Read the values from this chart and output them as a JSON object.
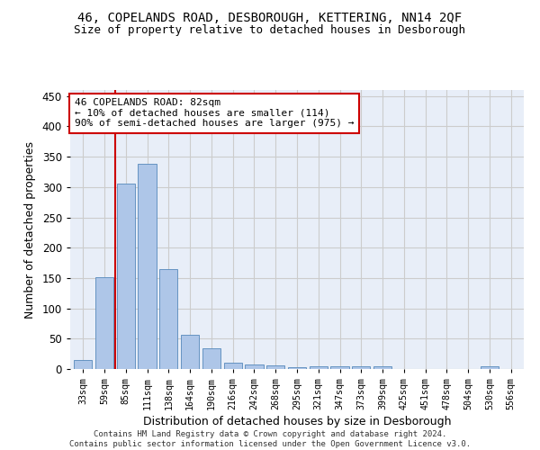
{
  "title": "46, COPELANDS ROAD, DESBOROUGH, KETTERING, NN14 2QF",
  "subtitle": "Size of property relative to detached houses in Desborough",
  "xlabel": "Distribution of detached houses by size in Desborough",
  "ylabel": "Number of detached properties",
  "categories": [
    "33sqm",
    "59sqm",
    "85sqm",
    "111sqm",
    "138sqm",
    "164sqm",
    "190sqm",
    "216sqm",
    "242sqm",
    "268sqm",
    "295sqm",
    "321sqm",
    "347sqm",
    "373sqm",
    "399sqm",
    "425sqm",
    "451sqm",
    "478sqm",
    "504sqm",
    "530sqm",
    "556sqm"
  ],
  "values": [
    15,
    152,
    305,
    338,
    165,
    57,
    34,
    10,
    8,
    6,
    3,
    4,
    5,
    5,
    5,
    0,
    0,
    0,
    0,
    4,
    0
  ],
  "bar_color": "#aec6e8",
  "bar_edge_color": "#5588bb",
  "vline_x_index": 1.5,
  "vline_color": "#cc0000",
  "annotation_text": "46 COPELANDS ROAD: 82sqm\n← 10% of detached houses are smaller (114)\n90% of semi-detached houses are larger (975) →",
  "annotation_box_color": "#ffffff",
  "annotation_box_edge": "#cc0000",
  "ylim": [
    0,
    460
  ],
  "yticks": [
    0,
    50,
    100,
    150,
    200,
    250,
    300,
    350,
    400,
    450
  ],
  "grid_color": "#cccccc",
  "bg_color": "#e8eef8",
  "footer": "Contains HM Land Registry data © Crown copyright and database right 2024.\nContains public sector information licensed under the Open Government Licence v3.0.",
  "title_fontsize": 10,
  "subtitle_fontsize": 9,
  "ylabel_fontsize": 9,
  "xlabel_fontsize": 9
}
